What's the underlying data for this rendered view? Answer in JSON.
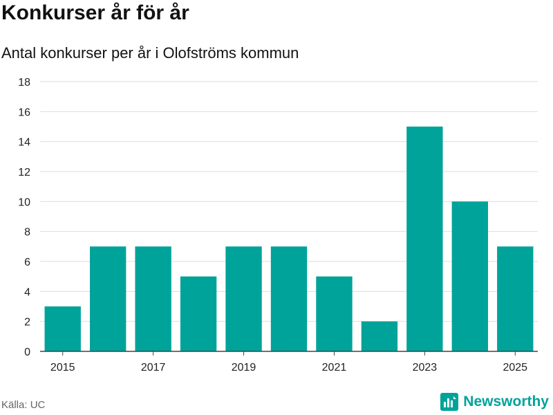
{
  "chart_data": {
    "type": "bar",
    "title": "Konkurser år för år",
    "subtitle": "Antal konkurser per år i Olofströms kommun",
    "categories": [
      "2015",
      "2016",
      "2017",
      "2018",
      "2019",
      "2020",
      "2021",
      "2022",
      "2023",
      "2024",
      "2025"
    ],
    "values": [
      3,
      7,
      7,
      5,
      7,
      7,
      5,
      2,
      15,
      10,
      7
    ],
    "x_tick_labels": [
      "2015",
      "2017",
      "2019",
      "2021",
      "2023",
      "2025"
    ],
    "y_tick_labels": [
      "0",
      "2",
      "4",
      "6",
      "8",
      "10",
      "12",
      "14",
      "16",
      "18"
    ],
    "ylim": [
      0,
      18
    ],
    "grid": true,
    "xlabel": "",
    "ylabel": "",
    "bar_color": "#00a39a"
  },
  "footer": {
    "source": "Källa: UC",
    "brand_name": "Newsworthy",
    "brand_color": "#00a39a",
    "brand_icon": "newsworthy-logo-icon"
  }
}
